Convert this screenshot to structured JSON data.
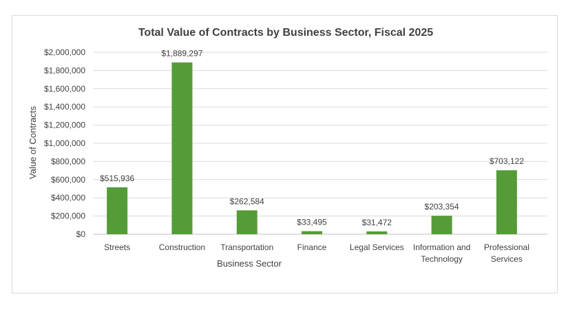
{
  "chart_data": {
    "type": "bar",
    "title": "Total Value of Contracts by Business Sector, Fiscal 2025",
    "xlabel": "Business Sector",
    "ylabel": "Value of Contracts",
    "ylim": [
      0,
      2000000
    ],
    "y_tick_step": 200000,
    "y_tick_labels": [
      "$0",
      "$200,000",
      "$400,000",
      "$600,000",
      "$800,000",
      "$1,000,000",
      "$1,200,000",
      "$1,400,000",
      "$1,600,000",
      "$1,800,000",
      "$2,000,000"
    ],
    "categories": [
      [
        "Streets"
      ],
      [
        "Construction"
      ],
      [
        "Transportation"
      ],
      [
        "Finance"
      ],
      [
        "Legal Services"
      ],
      [
        "Information and",
        "Technology"
      ],
      [
        "Professional",
        "Services"
      ]
    ],
    "values": [
      515936,
      1889297,
      262584,
      33495,
      31472,
      203354,
      703122
    ],
    "data_labels": [
      "$515,936",
      "$1,889,297",
      "$262,584",
      "$33,495",
      "$31,472",
      "$203,354",
      "$703,122"
    ],
    "bar_color": "#559c38",
    "grid": true,
    "legend": "none"
  }
}
